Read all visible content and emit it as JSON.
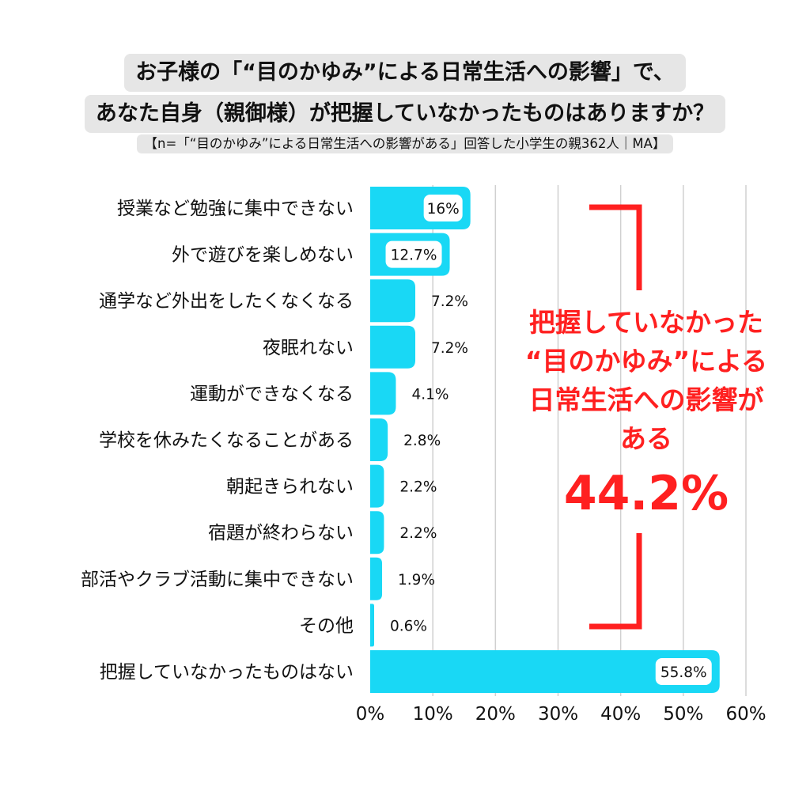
{
  "title": {
    "line1": "お子様の「“目のかゆみ”による日常生活への影響」で、",
    "line2": "あなた自身（親御様）が把握していなかったものはありますか？",
    "subtitle": "【n=「“目のかゆみ”による日常生活への影響がある」回答した小学生の親362人｜MA】"
  },
  "callout": {
    "line1": "把握していなかった",
    "line2": "“目のかゆみ”による",
    "line3": "日常生活への影響が",
    "line4": "ある",
    "value": "44.2%"
  },
  "colors": {
    "bar": "#19d8f5",
    "highlight": "#ff2020",
    "grid": "#d0d0d0",
    "title_bg": "#e6e6e6"
  },
  "chart_data": {
    "type": "bar",
    "orientation": "horizontal",
    "categories": [
      "授業など勉強に集中できない",
      "外で遊びを楽しめない",
      "通学など外出をしたくなくなる",
      "夜眠れない",
      "運動ができなくなる",
      "学校を休みたくなることがある",
      "朝起きられない",
      "宿題が終わらない",
      "部活やクラブ活動に集中できない",
      "その他",
      "把握していなかったものはない"
    ],
    "values": [
      16,
      12.7,
      7.2,
      7.2,
      4.1,
      2.8,
      2.2,
      2.2,
      1.9,
      0.6,
      55.8
    ],
    "value_labels": [
      "16%",
      "12.7%",
      "7.2%",
      "7.2%",
      "4.1%",
      "2.8%",
      "2.2%",
      "2.2%",
      "1.9%",
      "0.6%",
      "55.8%"
    ],
    "xlim": [
      0,
      60
    ],
    "x_ticks": [
      0,
      10,
      20,
      30,
      40,
      50,
      60
    ],
    "x_tick_labels": [
      "0%",
      "10%",
      "20%",
      "30%",
      "40%",
      "50%",
      "60%"
    ],
    "grid": true,
    "bracket_span": "first 10 categories",
    "inside_label_categories": [
      "授業など勉強に集中できない",
      "外で遊びを楽しめない",
      "把握していなかったものはない"
    ]
  }
}
